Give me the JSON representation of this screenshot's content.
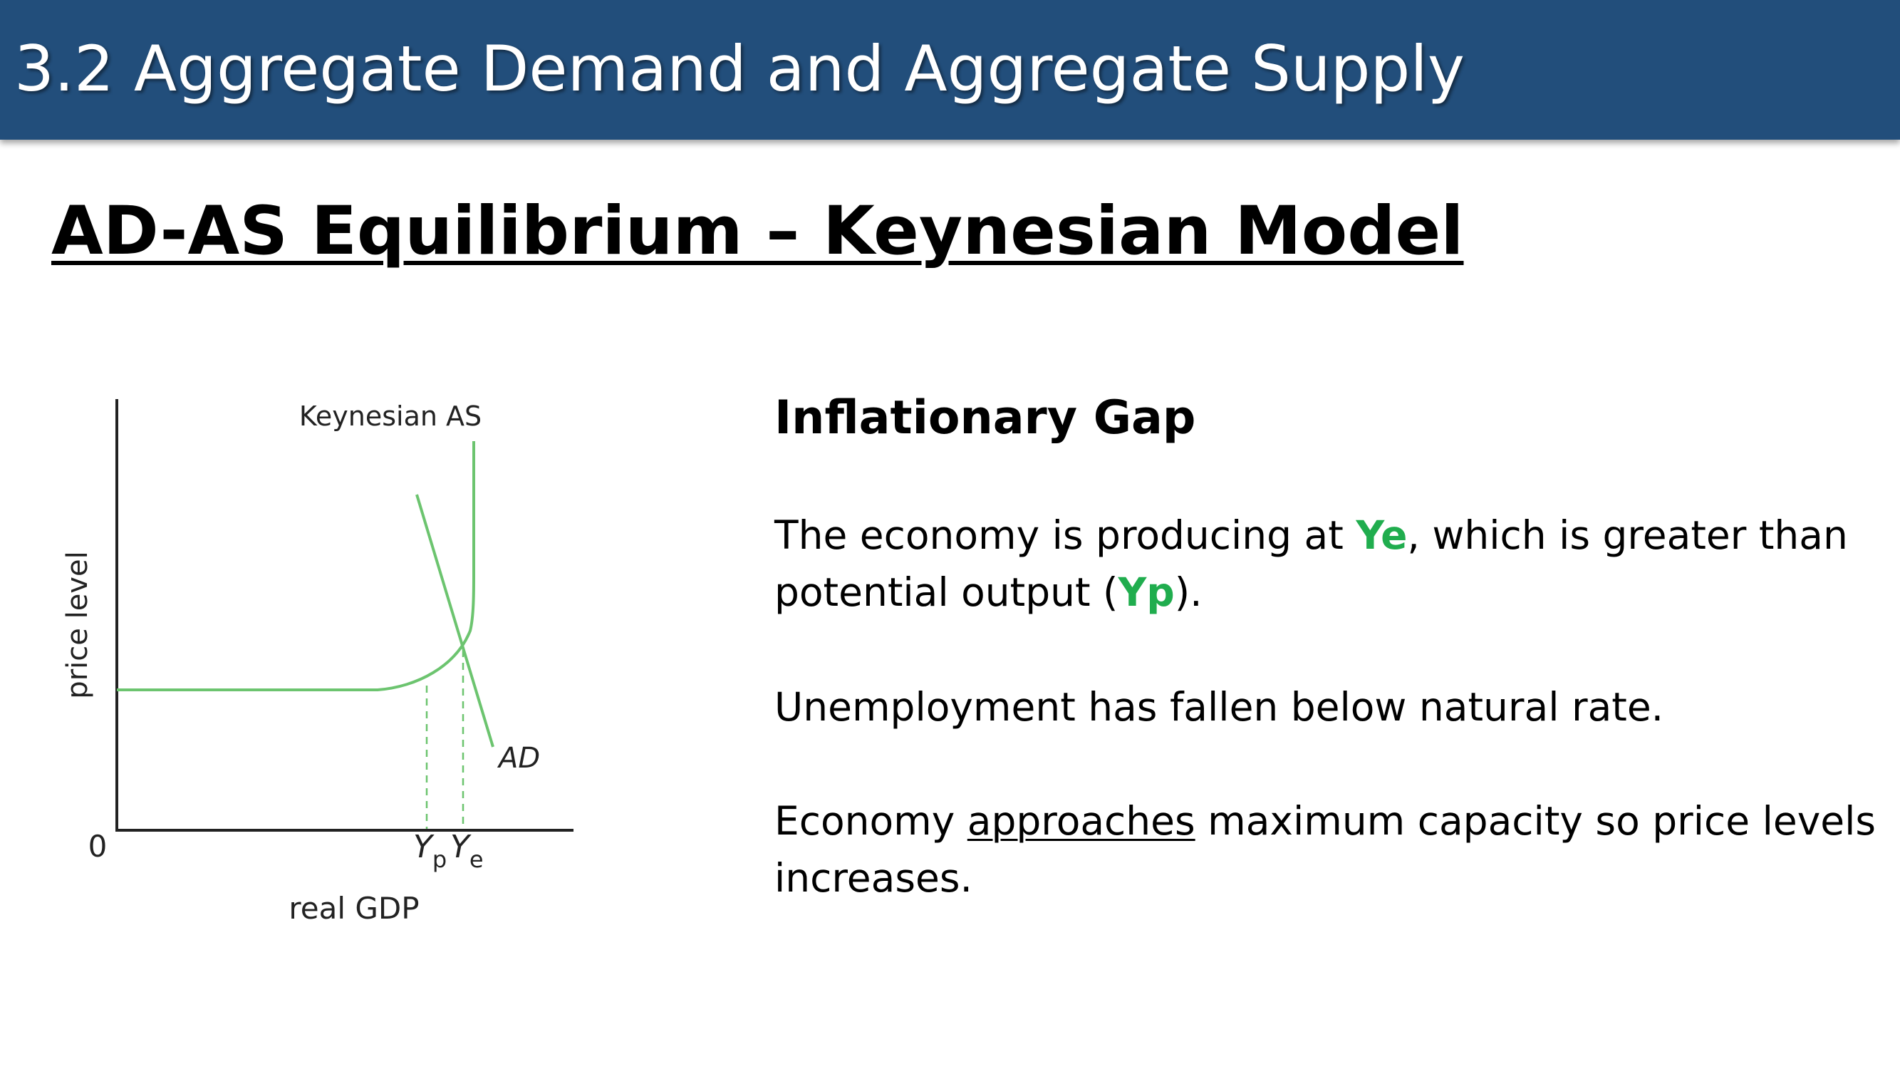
{
  "header": {
    "title": "3.2 Aggregate Demand and Aggregate Supply"
  },
  "slide": {
    "title": "AD-AS Equilibrium – Keynesian Model"
  },
  "diagram": {
    "origin_label": "0",
    "y_axis_label": "price level",
    "x_axis_label": "real GDP",
    "as_curve_label": "Keynesian AS",
    "ad_curve_label": "AD",
    "yp_label_main": "Y",
    "yp_label_sub": "p",
    "ye_label_main": "Y",
    "ye_label_sub": "e",
    "curve_color": "#6cc46f",
    "axis_color": "#222222"
  },
  "text_panel": {
    "heading": "Inflationary Gap",
    "p1": {
      "before": "The economy is producing at ",
      "ye": "Ye",
      "middle": ", which is greater than potential output (",
      "yp": "Yp",
      "after": ")."
    },
    "p2": "Unemployment has fallen below natural rate.",
    "p3": {
      "before": "Economy ",
      "underlined": "approaches",
      "after": " maximum capacity so price levels increases."
    },
    "highlight_color": "#20ad4e"
  }
}
